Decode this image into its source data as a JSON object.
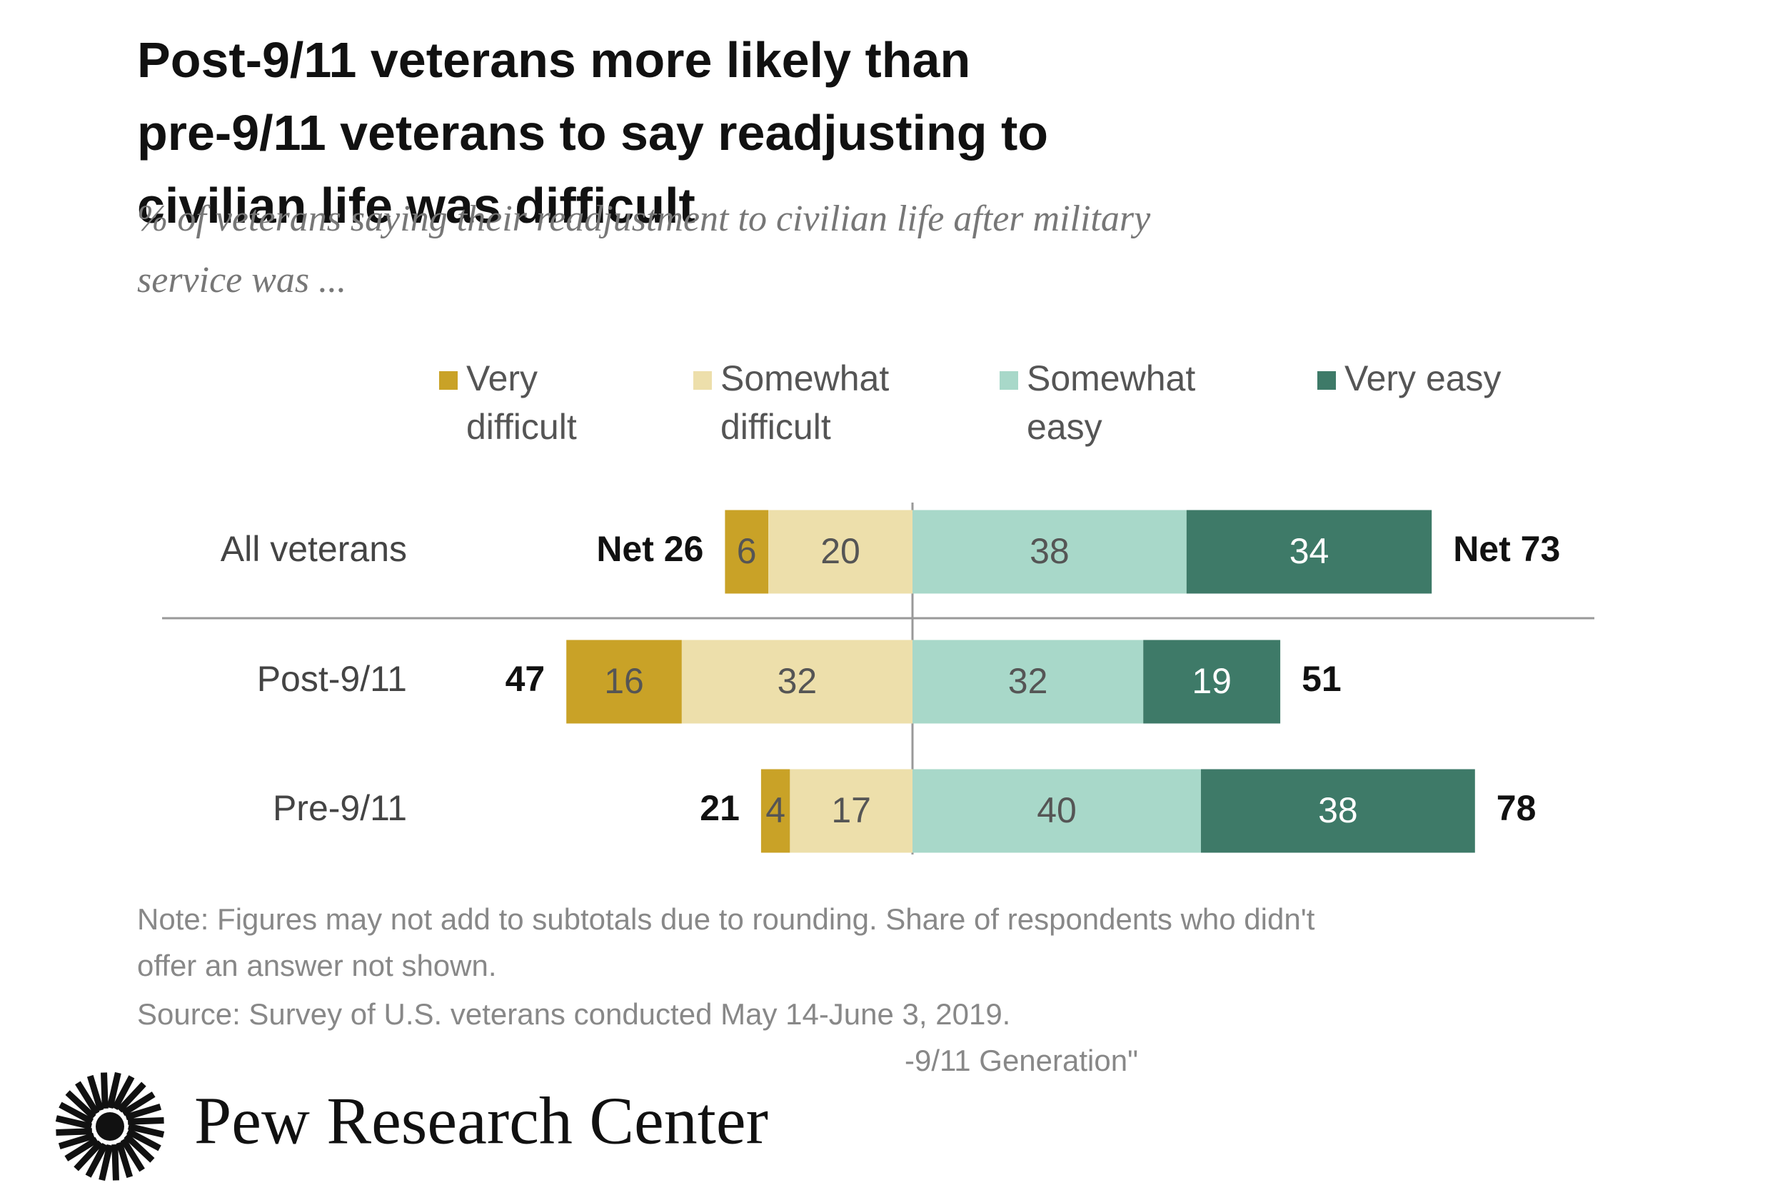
{
  "chart_data": {
    "type": "diverging-bar",
    "title": "Post-9/11 veterans more likely than pre-9/11 veterans to say readjusting to civilian life was difficult",
    "subtitle": "% of veterans saying their readjustment to civilian life after military service was ...",
    "categories": [
      "All veterans",
      "Post-9/11",
      "Pre-9/11"
    ],
    "series": [
      {
        "name": "Very difficult",
        "color": "#c9a227",
        "values": [
          6,
          16,
          4
        ]
      },
      {
        "name": "Somewhat difficult",
        "color": "#eddfab",
        "values": [
          20,
          32,
          17
        ]
      },
      {
        "name": "Somewhat easy",
        "color": "#a8d8c9",
        "values": [
          38,
          32,
          40
        ]
      },
      {
        "name": "Very easy",
        "color": "#3e7a68",
        "values": [
          34,
          19,
          38
        ]
      }
    ],
    "net_difficult": {
      "values": [
        26,
        47,
        21
      ],
      "value_labels": [
        "Net 26",
        "47",
        "21"
      ]
    },
    "net_easy": {
      "values": [
        73,
        51,
        78
      ],
      "value_labels": [
        "Net 73",
        "51",
        "78"
      ]
    },
    "notes": [
      "Note: Figures may not add to subtotals due to rounding. Share of respondents who didn't",
      "offer an answer not shown.",
      "Source: Survey of U.S. veterans conducted May 14-June 3, 2019.",
      "-9/11 Generation\""
    ],
    "logo": "Pew Research Center"
  }
}
